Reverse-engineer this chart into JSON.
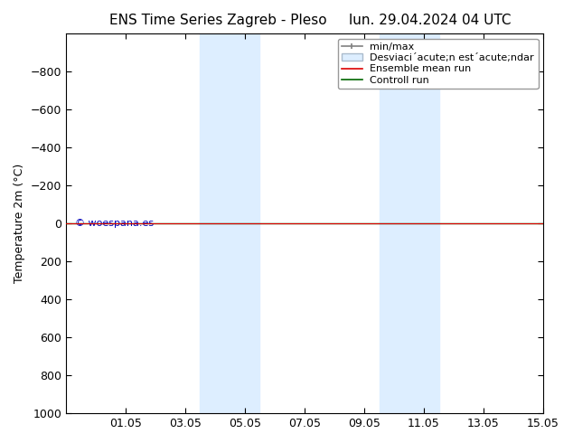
{
  "title_left": "ENS Time Series Zagreb - Pleso",
  "title_right": "lun. 29.04.2024 04 UTC",
  "ylabel": "Temperature 2m (°C)",
  "ylim": [
    -1000,
    1000
  ],
  "yticks": [
    -800,
    -600,
    -400,
    -200,
    0,
    200,
    400,
    600,
    800,
    1000
  ],
  "xtick_labels": [
    "01.05",
    "03.05",
    "05.05",
    "07.05",
    "09.05",
    "11.05",
    "13.05",
    "15.05"
  ],
  "xtick_positions": [
    2,
    4,
    6,
    8,
    10,
    12,
    14,
    16
  ],
  "xlim": [
    0,
    16
  ],
  "shaded_regions": [
    {
      "xmin": 4.5,
      "xmax": 6.5
    },
    {
      "xmin": 10.5,
      "xmax": 12.5
    }
  ],
  "shade_color": "#ddeeff",
  "horizontal_line_y": 0,
  "line_color_ensemble": "#dd0000",
  "line_color_control": "#006600",
  "watermark_text": "© woespana.es",
  "watermark_color": "#0000bb",
  "bg_color": "#ffffff",
  "title_fontsize": 11,
  "axis_label_fontsize": 9,
  "tick_fontsize": 9,
  "legend_fontsize": 8
}
